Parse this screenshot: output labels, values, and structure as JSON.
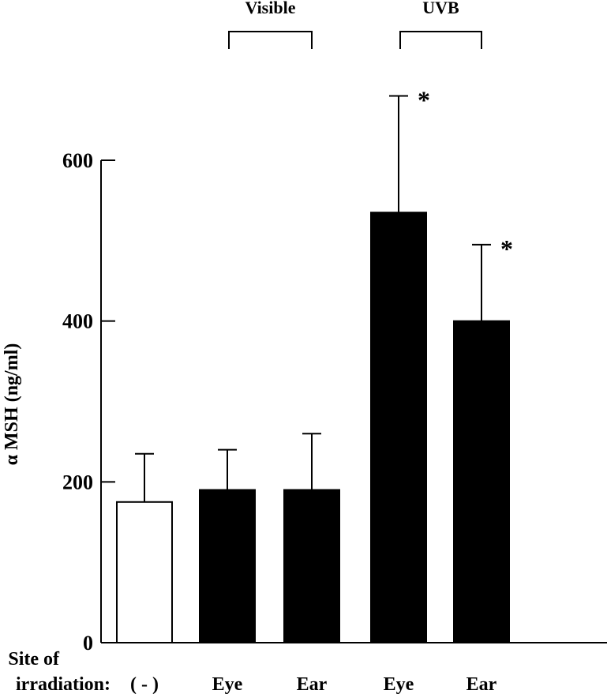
{
  "chart_data": {
    "type": "bar",
    "ylabel": "α MSH (ng/ml)",
    "ylim": [
      0,
      600
    ],
    "yticks": [
      0,
      200,
      400,
      600
    ],
    "x_axis_title": [
      "Site of",
      "irradiation:"
    ],
    "categories": [
      "( - )",
      "Eye",
      "Ear",
      "Eye",
      "Ear"
    ],
    "values": [
      175,
      190,
      190,
      535,
      400
    ],
    "errors": [
      60,
      50,
      70,
      145,
      95
    ],
    "fills": [
      "#ffffff",
      "#000000",
      "#000000",
      "#000000",
      "#000000"
    ],
    "significance": [
      "",
      "",
      "",
      "*",
      "*"
    ],
    "groups": [
      {
        "label": "Visible",
        "categories": [
          1,
          2
        ]
      },
      {
        "label": "UVB",
        "categories": [
          3,
          4
        ]
      }
    ]
  }
}
